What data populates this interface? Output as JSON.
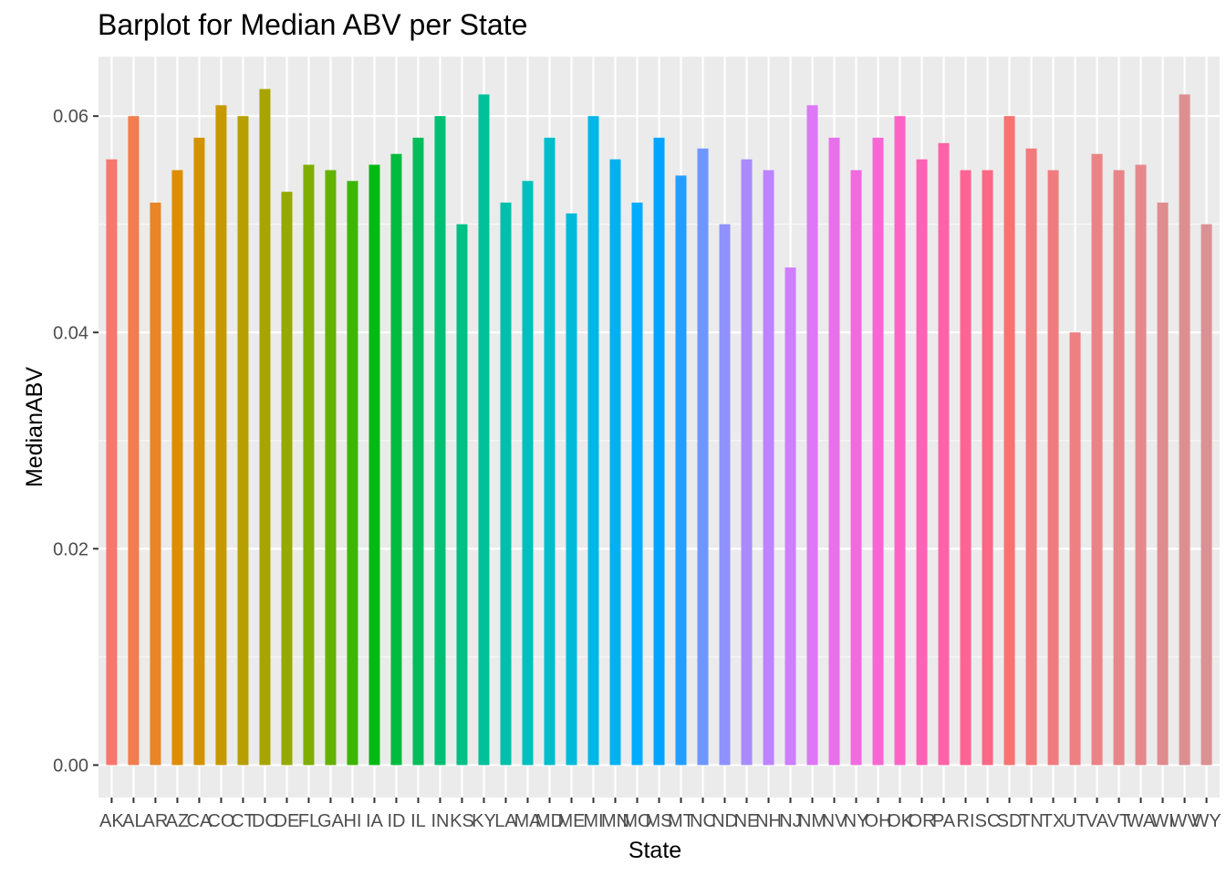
{
  "chart_data": {
    "type": "bar",
    "title": "Barplot for Median ABV per State",
    "xlabel": "State",
    "ylabel": "MedianABV",
    "ylim": [
      -0.003,
      0.0655
    ],
    "yticks": [
      0.0,
      0.02,
      0.04,
      0.06
    ],
    "ytick_labels": [
      "0.00",
      "0.02",
      "0.04",
      "0.06"
    ],
    "grid": true,
    "legend": "none",
    "categories": [
      "AK",
      "AL",
      "AR",
      "AZ",
      "CA",
      "CO",
      "CT",
      "DC",
      "DE",
      "FL",
      "GA",
      "HI",
      "IA",
      "ID",
      "IL",
      "IN",
      "KS",
      "KY",
      "LA",
      "MA",
      "MD",
      "ME",
      "MI",
      "MN",
      "MO",
      "MS",
      "MT",
      "NC",
      "ND",
      "NE",
      "NH",
      "NJ",
      "NM",
      "NV",
      "NY",
      "OH",
      "OK",
      "OR",
      "PA",
      "RI",
      "SC",
      "SD",
      "TN",
      "TX",
      "UT",
      "VA",
      "VT",
      "WA",
      "WI",
      "WV",
      "WY"
    ],
    "values": [
      0.056,
      0.06,
      0.052,
      0.055,
      0.058,
      0.061,
      0.06,
      0.0625,
      0.053,
      0.0555,
      0.055,
      0.054,
      0.0555,
      0.0565,
      0.058,
      0.06,
      0.05,
      0.062,
      0.052,
      0.054,
      0.058,
      0.051,
      0.06,
      0.056,
      0.052,
      0.058,
      0.0545,
      0.057,
      0.05,
      0.056,
      0.055,
      0.046,
      0.061,
      0.058,
      0.055,
      0.058,
      0.06,
      0.056,
      0.0575,
      0.055,
      0.055,
      0.06,
      0.057,
      0.055,
      0.04,
      0.0565,
      0.055,
      0.0555,
      0.052,
      0.062,
      0.05
    ],
    "colors": [
      "#F8766D",
      "#F17D50",
      "#E88526",
      "#DE8C00",
      "#D39200",
      "#C69900",
      "#B79F00",
      "#A7A400",
      "#95A900",
      "#7FAE00",
      "#64B200",
      "#3CB600",
      "#00B915",
      "#00BB3E",
      "#00BD5A",
      "#00BF72",
      "#00C086",
      "#00C19A",
      "#00C0AC",
      "#00BFBC",
      "#00BDCC",
      "#00BADA",
      "#00B7E6",
      "#00B2F2",
      "#00ACFC",
      "#00A5FF",
      "#239EFF",
      "#6D97FF",
      "#8F91FF",
      "#A98BFF",
      "#BD84FF",
      "#CE7EFE",
      "#DC77F6",
      "#E770EC",
      "#F16AE0",
      "#F866D3",
      "#FD63C5",
      "#FF61B6",
      "#FF62A6",
      "#FF6495",
      "#FC6784",
      "#F87272",
      "#F5787A",
      "#F17C7F",
      "#EE7F82",
      "#EB8285",
      "#E78588",
      "#E4888B",
      "#E08B8E",
      "#DD8E91",
      "#DA9194"
    ]
  }
}
